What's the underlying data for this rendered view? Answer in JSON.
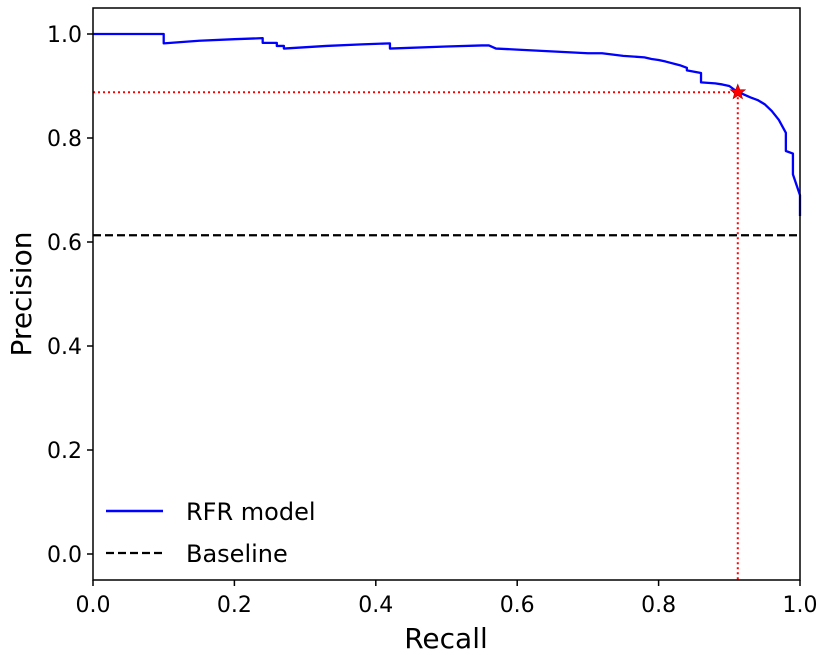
{
  "chart_data": {
    "type": "line",
    "xlabel": "Recall",
    "ylabel": "Precision",
    "xlim": [
      0.0,
      1.0
    ],
    "ylim": [
      -0.05,
      1.05
    ],
    "xticks": [
      "0.0",
      "0.2",
      "0.4",
      "0.6",
      "0.8",
      "1.0"
    ],
    "yticks": [
      "0.0",
      "0.2",
      "0.4",
      "0.6",
      "0.8",
      "1.0"
    ],
    "grid": false,
    "legend_position": "bottom-left",
    "series": [
      {
        "name": "RFR model",
        "style": "solid",
        "color": "#0000ff",
        "x": [
          0.0,
          0.1,
          0.1,
          0.15,
          0.2,
          0.24,
          0.24,
          0.26,
          0.26,
          0.27,
          0.27,
          0.33,
          0.38,
          0.42,
          0.42,
          0.5,
          0.55,
          0.56,
          0.57,
          0.6,
          0.7,
          0.72,
          0.75,
          0.78,
          0.79,
          0.8,
          0.81,
          0.83,
          0.84,
          0.84,
          0.86,
          0.86,
          0.88,
          0.89,
          0.9,
          0.91,
          0.92,
          0.93,
          0.94,
          0.95,
          0.96,
          0.97,
          0.98,
          0.98,
          0.99,
          0.99,
          1.0,
          1.0
        ],
        "y": [
          1.0,
          1.0,
          0.982,
          0.987,
          0.99,
          0.992,
          0.983,
          0.983,
          0.977,
          0.977,
          0.972,
          0.977,
          0.98,
          0.982,
          0.972,
          0.976,
          0.978,
          0.978,
          0.972,
          0.97,
          0.963,
          0.963,
          0.958,
          0.955,
          0.952,
          0.95,
          0.947,
          0.94,
          0.935,
          0.93,
          0.925,
          0.907,
          0.905,
          0.903,
          0.9,
          0.89,
          0.884,
          0.878,
          0.873,
          0.865,
          0.852,
          0.835,
          0.81,
          0.775,
          0.77,
          0.73,
          0.69,
          0.65
        ]
      },
      {
        "name": "Baseline",
        "style": "dashed",
        "color": "#000000",
        "x": [
          0.0,
          1.0
        ],
        "y": [
          0.613,
          0.613
        ]
      }
    ],
    "highlight": {
      "x": 0.912,
      "y": 0.888,
      "marker": "star",
      "marker_color": "#ff0000",
      "guide_style": "dotted",
      "guide_color": "#ff0000"
    }
  }
}
